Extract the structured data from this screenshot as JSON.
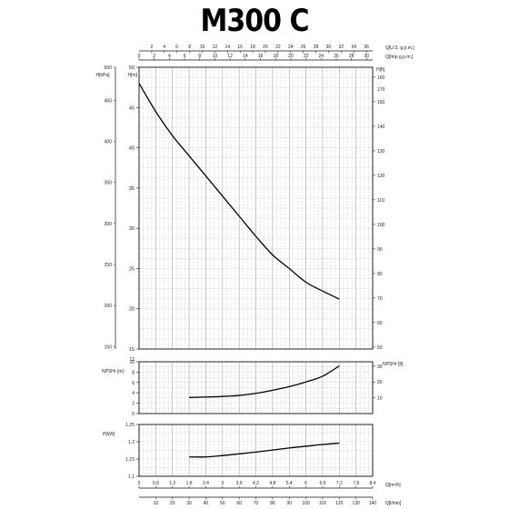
{
  "title": "M300 C",
  "chart_data": [
    {
      "panel": "head",
      "type": "line",
      "ylabel_left": "H[m]",
      "ylabel_left_outer": "H[kPa]",
      "ylabel_right": "H[ft]",
      "xlabel_top": "Q[U.S. g.p.m.]",
      "xlabel_top2": "Q[Imp g.p.m.]",
      "ylim": [
        15,
        50
      ],
      "xlim": [
        0,
        8.4
      ],
      "yticks": [
        15,
        20,
        25,
        30,
        35,
        40,
        45,
        50
      ],
      "kpa_ticks": [
        {
          "label": "150",
          "m": 15.3
        },
        {
          "label": "200",
          "m": 20.4
        },
        {
          "label": "250",
          "m": 25.5
        },
        {
          "label": "300",
          "m": 30.6
        },
        {
          "label": "350",
          "m": 35.7
        },
        {
          "label": "400",
          "m": 40.8
        },
        {
          "label": "450",
          "m": 45.9
        },
        {
          "label": "500",
          "m": 51.0
        }
      ],
      "ft_ticks": [
        {
          "label": "50",
          "m": 15.24
        },
        {
          "label": "60",
          "m": 18.29
        },
        {
          "label": "70",
          "m": 21.34
        },
        {
          "label": "80",
          "m": 24.38
        },
        {
          "label": "90",
          "m": 27.43
        },
        {
          "label": "100",
          "m": 30.48
        },
        {
          "label": "110",
          "m": 33.53
        },
        {
          "label": "120",
          "m": 36.58
        },
        {
          "label": "130",
          "m": 39.62
        },
        {
          "label": "140",
          "m": 42.67
        },
        {
          "label": "150",
          "m": 45.72
        },
        {
          "label": "160",
          "m": 48.77
        },
        {
          "label": "170",
          "m": 51.82
        }
      ],
      "usgpm_ticks": [
        {
          "label": "2",
          "q": 0.454
        },
        {
          "label": "4",
          "q": 0.908
        },
        {
          "label": "6",
          "q": 1.363
        },
        {
          "label": "8",
          "q": 1.817
        },
        {
          "label": "10",
          "q": 2.271
        },
        {
          "label": "12",
          "q": 2.725
        },
        {
          "label": "14",
          "q": 3.18
        },
        {
          "label": "16",
          "q": 3.634
        },
        {
          "label": "18",
          "q": 4.088
        },
        {
          "label": "20",
          "q": 4.542
        },
        {
          "label": "22",
          "q": 4.996
        },
        {
          "label": "24",
          "q": 5.451
        },
        {
          "label": "26",
          "q": 5.905
        },
        {
          "label": "28",
          "q": 6.359
        },
        {
          "label": "30",
          "q": 6.813
        },
        {
          "label": "32",
          "q": 7.267
        },
        {
          "label": "34",
          "q": 7.722
        },
        {
          "label": "36",
          "q": 8.176
        }
      ],
      "impgpm_ticks": [
        {
          "label": "0",
          "q": 0
        },
        {
          "label": "2",
          "q": 0.545
        },
        {
          "label": "4",
          "q": 1.091
        },
        {
          "label": "6",
          "q": 1.637
        },
        {
          "label": "8",
          "q": 2.182
        },
        {
          "label": "10",
          "q": 2.728
        },
        {
          "label": "12",
          "q": 3.274
        },
        {
          "label": "14",
          "q": 3.819
        },
        {
          "label": "16",
          "q": 4.365
        },
        {
          "label": "18",
          "q": 4.91
        },
        {
          "label": "20",
          "q": 5.456
        },
        {
          "label": "22",
          "q": 6.002
        },
        {
          "label": "24",
          "q": 6.547
        },
        {
          "label": "26",
          "q": 7.093
        },
        {
          "label": "28",
          "q": 7.638
        },
        {
          "label": "30",
          "q": 8.184
        }
      ],
      "x": [
        0,
        0.6,
        1.2,
        1.8,
        2.4,
        3.0,
        3.6,
        4.2,
        4.8,
        5.4,
        6.0,
        6.6,
        7.2
      ],
      "y": [
        48,
        44.5,
        41.5,
        39,
        36.5,
        34,
        31.5,
        29,
        26.7,
        25,
        23.3,
        22.2,
        21.2
      ]
    },
    {
      "panel": "npsh",
      "type": "line",
      "ylabel_left": "NPSHr [m]",
      "ylabel_right": "NPSHr [ft]",
      "ylim": [
        0,
        10
      ],
      "yticks": [
        0,
        2,
        4,
        6,
        8,
        10
      ],
      "ytick_labels": [
        "0",
        "2",
        "4",
        "6",
        "8",
        "10"
      ],
      "extra_left_labels": [
        {
          "label": "12",
          "y": 10.4
        }
      ],
      "ft_ticks": [
        {
          "label": "10",
          "m": 3.05
        },
        {
          "label": "20",
          "m": 6.1
        },
        {
          "label": "30",
          "m": 9.14
        }
      ],
      "x": [
        1.8,
        2.4,
        3.0,
        3.6,
        4.2,
        4.8,
        5.4,
        6.0,
        6.6,
        7.2
      ],
      "y": [
        3.1,
        3.2,
        3.3,
        3.5,
        3.9,
        4.5,
        5.2,
        6.1,
        7.2,
        9.2
      ]
    },
    {
      "panel": "power",
      "type": "line",
      "ylabel_left": "P[kW]",
      "ylim": [
        1.1,
        1.25
      ],
      "yticks": [
        1.1,
        1.15,
        1.2,
        1.25
      ],
      "ytick_labels": [
        "1.1",
        "1.15",
        "1.2",
        "1.25"
      ],
      "x": [
        1.8,
        2.4,
        3.0,
        3.6,
        4.2,
        4.8,
        5.4,
        6.0,
        6.6,
        7.2
      ],
      "y": [
        1.156,
        1.156,
        1.16,
        1.165,
        1.17,
        1.176,
        1.182,
        1.187,
        1.192,
        1.196
      ],
      "xlabel_bottom": "Q[m³/h]",
      "xlabel_bottom2": "Q[l/min]",
      "xticks_m3h": [
        "0",
        "0.6",
        "1.2",
        "1.8",
        "2.4",
        "3",
        "3.6",
        "4.2",
        "4.8",
        "5.4",
        "6",
        "6.6",
        "7.2",
        "7.8",
        "8.4"
      ],
      "lmin_ticks": [
        {
          "label": "10",
          "q": 0.6
        },
        {
          "label": "20",
          "q": 1.2
        },
        {
          "label": "30",
          "q": 1.8
        },
        {
          "label": "40",
          "q": 2.4
        },
        {
          "label": "50",
          "q": 3.0
        },
        {
          "label": "60",
          "q": 3.6
        },
        {
          "label": "70",
          "q": 4.2
        },
        {
          "label": "80",
          "q": 4.8
        },
        {
          "label": "90",
          "q": 5.4
        },
        {
          "label": "100",
          "q": 6.0
        },
        {
          "label": "110",
          "q": 6.6
        },
        {
          "label": "120",
          "q": 7.2
        },
        {
          "label": "130",
          "q": 7.8
        },
        {
          "label": "140",
          "q": 8.4
        }
      ]
    }
  ]
}
